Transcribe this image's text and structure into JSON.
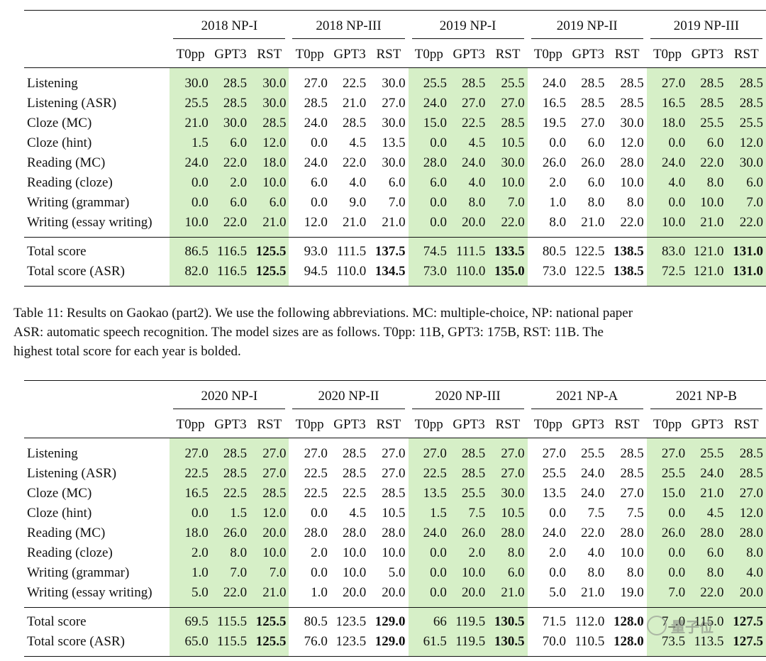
{
  "tables": [
    {
      "years": [
        "2018 NP-I",
        "2018 NP-III",
        "2019 NP-I",
        "2019 NP-II",
        "2019 NP-III"
      ],
      "models": [
        "T0pp",
        "GPT3",
        "RST"
      ],
      "rows": [
        {
          "label": "Listening",
          "values": [
            "30.0",
            "28.5",
            "30.0",
            "27.0",
            "22.5",
            "30.0",
            "25.5",
            "28.5",
            "25.5",
            "24.0",
            "28.5",
            "28.5",
            "27.0",
            "28.5",
            "28.5"
          ]
        },
        {
          "label": "Listening (ASR)",
          "values": [
            "25.5",
            "28.5",
            "30.0",
            "28.5",
            "21.0",
            "27.0",
            "24.0",
            "27.0",
            "27.0",
            "16.5",
            "28.5",
            "28.5",
            "16.5",
            "28.5",
            "28.5"
          ]
        },
        {
          "label": "Cloze (MC)",
          "values": [
            "21.0",
            "30.0",
            "28.5",
            "24.0",
            "28.5",
            "30.0",
            "15.0",
            "22.5",
            "28.5",
            "19.5",
            "27.0",
            "30.0",
            "18.0",
            "25.5",
            "25.5"
          ]
        },
        {
          "label": "Cloze (hint)",
          "values": [
            "1.5",
            "6.0",
            "12.0",
            "0.0",
            "4.5",
            "13.5",
            "0.0",
            "4.5",
            "10.5",
            "0.0",
            "6.0",
            "12.0",
            "0.0",
            "6.0",
            "12.0"
          ]
        },
        {
          "label": "Reading (MC)",
          "values": [
            "24.0",
            "22.0",
            "18.0",
            "24.0",
            "22.0",
            "30.0",
            "28.0",
            "24.0",
            "30.0",
            "26.0",
            "26.0",
            "28.0",
            "24.0",
            "22.0",
            "30.0"
          ]
        },
        {
          "label": "Reading (cloze)",
          "values": [
            "0.0",
            "2.0",
            "10.0",
            "6.0",
            "4.0",
            "6.0",
            "6.0",
            "4.0",
            "10.0",
            "2.0",
            "6.0",
            "10.0",
            "4.0",
            "8.0",
            "6.0"
          ]
        },
        {
          "label": "Writing (grammar)",
          "values": [
            "0.0",
            "6.0",
            "6.0",
            "0.0",
            "9.0",
            "7.0",
            "0.0",
            "8.0",
            "7.0",
            "1.0",
            "8.0",
            "8.0",
            "0.0",
            "10.0",
            "7.0"
          ]
        },
        {
          "label": "Writing (essay writing)",
          "values": [
            "10.0",
            "22.0",
            "21.0",
            "12.0",
            "21.0",
            "21.0",
            "0.0",
            "20.0",
            "22.0",
            "8.0",
            "21.0",
            "22.0",
            "10.0",
            "21.0",
            "22.0"
          ]
        }
      ],
      "totals": [
        {
          "label": "Total score",
          "values": [
            "86.5",
            "116.5",
            "125.5",
            "93.0",
            "111.5",
            "137.5",
            "74.5",
            "111.5",
            "133.5",
            "80.5",
            "122.5",
            "138.5",
            "83.0",
            "121.0",
            "131.0"
          ]
        },
        {
          "label": "Total score (ASR)",
          "values": [
            "82.0",
            "116.5",
            "125.5",
            "94.5",
            "110.0",
            "134.5",
            "73.0",
            "110.0",
            "135.0",
            "73.0",
            "122.5",
            "138.5",
            "72.5",
            "121.0",
            "131.0"
          ]
        }
      ]
    },
    {
      "years": [
        "2020 NP-I",
        "2020 NP-II",
        "2020 NP-III",
        "2021 NP-A",
        "2021 NP-B"
      ],
      "models": [
        "T0pp",
        "GPT3",
        "RST"
      ],
      "rows": [
        {
          "label": "Listening",
          "values": [
            "27.0",
            "28.5",
            "27.0",
            "27.0",
            "28.5",
            "27.0",
            "27.0",
            "28.5",
            "27.0",
            "27.0",
            "25.5",
            "28.5",
            "27.0",
            "25.5",
            "28.5"
          ]
        },
        {
          "label": "Listening (ASR)",
          "values": [
            "22.5",
            "28.5",
            "27.0",
            "22.5",
            "28.5",
            "27.0",
            "22.5",
            "28.5",
            "27.0",
            "25.5",
            "24.0",
            "28.5",
            "25.5",
            "24.0",
            "28.5"
          ]
        },
        {
          "label": "Cloze (MC)",
          "values": [
            "16.5",
            "22.5",
            "28.5",
            "22.5",
            "22.5",
            "28.5",
            "13.5",
            "25.5",
            "30.0",
            "13.5",
            "24.0",
            "27.0",
            "15.0",
            "21.0",
            "27.0"
          ]
        },
        {
          "label": "Cloze (hint)",
          "values": [
            "0.0",
            "1.5",
            "12.0",
            "0.0",
            "4.5",
            "10.5",
            "1.5",
            "7.5",
            "10.5",
            "0.0",
            "7.5",
            "7.5",
            "0.0",
            "4.5",
            "12.0"
          ]
        },
        {
          "label": "Reading (MC)",
          "values": [
            "18.0",
            "26.0",
            "20.0",
            "28.0",
            "28.0",
            "28.0",
            "24.0",
            "26.0",
            "28.0",
            "24.0",
            "22.0",
            "28.0",
            "26.0",
            "28.0",
            "28.0"
          ]
        },
        {
          "label": "Reading (cloze)",
          "values": [
            "2.0",
            "8.0",
            "10.0",
            "2.0",
            "10.0",
            "10.0",
            "0.0",
            "2.0",
            "8.0",
            "2.0",
            "4.0",
            "10.0",
            "0.0",
            "6.0",
            "8.0"
          ]
        },
        {
          "label": "Writing (grammar)",
          "values": [
            "1.0",
            "7.0",
            "7.0",
            "0.0",
            "10.0",
            "5.0",
            "0.0",
            "10.0",
            "6.0",
            "0.0",
            "8.0",
            "8.0",
            "0.0",
            "8.0",
            "4.0"
          ]
        },
        {
          "label": "Writing (essay writing)",
          "values": [
            "5.0",
            "22.0",
            "21.0",
            "1.0",
            "20.0",
            "20.0",
            "0.0",
            "20.0",
            "21.0",
            "5.0",
            "21.0",
            "19.0",
            "7.0",
            "22.0",
            "20.0"
          ]
        }
      ],
      "totals": [
        {
          "label": "Total score",
          "values": [
            "69.5",
            "115.5",
            "125.5",
            "80.5",
            "123.5",
            "129.0",
            "66",
            "119.5",
            "130.5",
            "71.5",
            "112.0",
            "128.0",
            "7_.0",
            "115.0",
            "127.5"
          ]
        },
        {
          "label": "Total score (ASR)",
          "values": [
            "65.0",
            "115.5",
            "125.5",
            "76.0",
            "123.5",
            "129.0",
            "61.5",
            "119.5",
            "130.5",
            "70.0",
            "110.5",
            "128.0",
            "73.5",
            "113.5",
            "127.5"
          ]
        }
      ]
    }
  ],
  "caption": {
    "line1": "Table 11: Results on Gaokao (part2). We use the following abbreviations. MC: multiple-choice, NP: national paper",
    "line2": "ASR: automatic speech recognition. The model sizes are as follows. T0pp: 11B, GPT3: 175B, RST: 11B. The",
    "line3": "highest total score for each year is bolded."
  },
  "watermark": {
    "text": "量子位",
    "icon": "wechat-icon"
  },
  "colors": {
    "highlight": "#d6efc7",
    "rule": "#111111"
  }
}
